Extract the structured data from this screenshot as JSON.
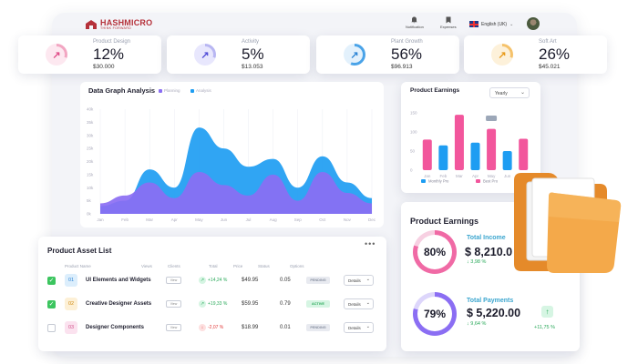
{
  "brand": {
    "name": "HASHMICRO",
    "tagline": "THINK FORWARD"
  },
  "topbar": {
    "notifications": "Notification",
    "expenses": "Expenses",
    "language": "English (UK)"
  },
  "stats": [
    {
      "label": "Product Design",
      "percent": "12%",
      "amount": "$30.000",
      "ring_color": "#f2a6c2",
      "inner_bg": "#fde8f0",
      "arrow_color": "#e0508a",
      "progress": 12
    },
    {
      "label": "Activity",
      "percent": "5%",
      "amount": "$13.053",
      "ring_color": "#b8b6f2",
      "inner_bg": "#e8e7fd",
      "arrow_color": "#5550d8",
      "progress": 5
    },
    {
      "label": "Plant Growth",
      "percent": "56%",
      "amount": "$96.913",
      "ring_color": "#4aa3e8",
      "inner_bg": "#e3f1fc",
      "arrow_color": "#2f86d5",
      "progress": 56
    },
    {
      "label": "Soft Art",
      "percent": "26%",
      "amount": "$45.021",
      "ring_color": "#f5c26b",
      "inner_bg": "#fdf1da",
      "arrow_color": "#e89b1c",
      "progress": 26
    }
  ],
  "graph": {
    "title": "Data Graph Analysis",
    "legend": [
      "Planning",
      "Analysis"
    ]
  },
  "product_earnings_small": {
    "title": "Product Earnings",
    "select": "Yearly",
    "legend": [
      "Monthly Pro",
      "Best Pro"
    ]
  },
  "product_earnings_large": {
    "title": "Product Earnings",
    "income": {
      "percent": "80%",
      "label": "Total Income",
      "value": "$ 8,210.0",
      "change": "↓ 3,98 %"
    },
    "payments": {
      "percent": "79%",
      "label": "Total Payments",
      "value": "$ 5,220.00",
      "change": "↓ 9,64 %",
      "extra_change": "+11,75 %"
    }
  },
  "asset_list": {
    "title": "Product Asset List",
    "headers": [
      "Product Name",
      "Views",
      "Clients",
      "Total",
      "Price",
      "Status",
      "Options"
    ],
    "rows": [
      {
        "num": "01",
        "name": "UI Elements and Widgets",
        "view": "View",
        "change": "+14,24 %",
        "price": "$49.95",
        "qty": "0.05",
        "status": "PENDING",
        "details": "Details",
        "checked": true
      },
      {
        "num": "02",
        "name": "Creative Designer Assets",
        "view": "View",
        "change": "+19,33 %",
        "price": "$59.95",
        "qty": "0.79",
        "status": "ACTIVE",
        "details": "Details",
        "checked": true
      },
      {
        "num": "03",
        "name": "Designer Components",
        "view": "View",
        "change": "-2,07 %",
        "price": "$18.99",
        "qty": "0.01",
        "status": "PENDING",
        "details": "Details",
        "checked": false
      }
    ]
  },
  "chart_data": [
    {
      "type": "area",
      "title": "Data Graph Analysis",
      "categories": [
        "Jan",
        "Feb",
        "Mar",
        "Apr",
        "May",
        "Jun",
        "Jul",
        "Aug",
        "Sep",
        "Oct",
        "Nov",
        "Dec"
      ],
      "y_ticks": [
        "40k",
        "35k",
        "30k",
        "25k",
        "20k",
        "15k",
        "10k",
        "5k",
        "0k"
      ],
      "ylim": [
        0,
        40
      ],
      "series": [
        {
          "name": "Analysis",
          "color": "#1e9df2",
          "values": [
            3,
            5,
            17,
            10,
            33,
            25,
            18,
            21,
            10,
            22,
            12,
            6
          ]
        },
        {
          "name": "Planning",
          "color": "#8b6ef3",
          "values": [
            4,
            7,
            12,
            6,
            16,
            11,
            7,
            15,
            5,
            16,
            8,
            4
          ]
        }
      ]
    },
    {
      "type": "bar",
      "title": "Product Earnings",
      "categories": [
        "Jan",
        "Feb",
        "Mar",
        "Apr",
        "May",
        "Jun",
        "Jul"
      ],
      "y_ticks": [
        "150",
        "100",
        "50",
        "0"
      ],
      "ylim": [
        0,
        150
      ],
      "series": [
        {
          "name": "Best Pro",
          "color": "#f2569c",
          "values": [
            80,
            105,
            145,
            65,
            108,
            52,
            82
          ]
        },
        {
          "name": "Monthly Pro",
          "color": "#1e9df2",
          "values": [
            55,
            65,
            72,
            72,
            40,
            50,
            0
          ]
        }
      ]
    }
  ]
}
